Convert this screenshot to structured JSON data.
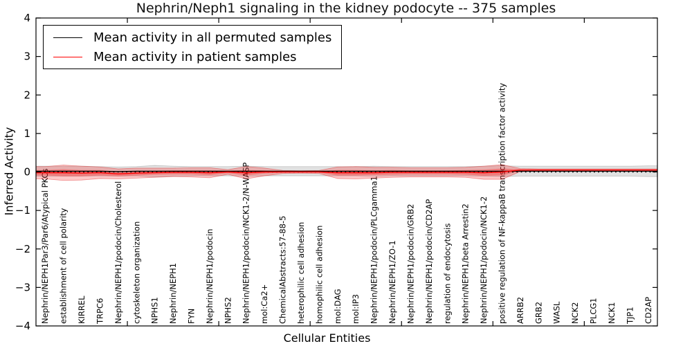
{
  "title": "Nephrin/Neph1 signaling in the kidney podocyte -- 375 samples",
  "legend": {
    "items": [
      {
        "label": "Mean activity in all permuted samples",
        "color": "#000000"
      },
      {
        "label": "Mean activity in patient samples",
        "color": "#ff0000"
      }
    ]
  },
  "axes": {
    "ylabel": "Inferred Activity",
    "xlabel": "Cellular Entities"
  },
  "chart_data": {
    "type": "line",
    "title": "Nephrin/Neph1 signaling in the kidney podocyte -- 375 samples",
    "xlabel": "Cellular Entities",
    "ylabel": "Inferred Activity",
    "ylim": [
      -4,
      4
    ],
    "yticks": [
      -4,
      -3,
      -2,
      -1,
      0,
      1,
      2,
      3,
      4
    ],
    "xtick_positions": [
      5,
      10,
      15,
      20,
      25,
      30
    ],
    "grid": false,
    "legend_position": "upper left",
    "categories": [
      "Nephrin/NEPH1Par3/Par6/Atypical PKCs",
      "establishment of cell polarity",
      "KIRREL",
      "TRPC6",
      "Nephrin/NEPH1/podocin/Cholesterol",
      "cytoskeleton organization",
      "NPHS1",
      "Nephrin/NEPH1",
      "FYN",
      "Nephrin/NEPH1/podocin",
      "NPHS2",
      "Nephrin/NEPH1/podocin/NCK1-2/N-WASP",
      "mol:Ca2+",
      "ChemicalAbstracts:57-88-5",
      "heterophilic cell adhesion",
      "homophilic cell adhesion",
      "mol:DAG",
      "mol:IP3",
      "Nephrin/NEPH1/podocin/PLCgamma1",
      "Nephrin/NEPH1/ZO-1",
      "Nephrin/NEPH1/podocin/GRB2",
      "Nephrin/NEPH1/podocin/CD2AP",
      "regulation of endocytosis",
      "Nephrin/NEPH1/beta Arrestin2",
      "Nephrin/NEPH1/podocin/NCK1-2",
      "positive regulation of NF-kappaB transcription factor activity",
      "ARRB2",
      "GRB2",
      "WASL",
      "NCK2",
      "PLCG1",
      "NCK1",
      "TJP1",
      "CD2AP"
    ],
    "series": [
      {
        "name": "Mean activity in all permuted samples",
        "color": "#000000",
        "values": [
          0.02,
          0.02,
          0.02,
          0.02,
          0.01,
          0.02,
          0.02,
          0.02,
          0.02,
          0.02,
          0.02,
          0.02,
          0.02,
          0.02,
          0.02,
          0.02,
          0.02,
          0.02,
          0.02,
          0.02,
          0.02,
          0.02,
          0.02,
          0.02,
          0.02,
          0.02,
          0.02,
          0.02,
          0.02,
          0.02,
          0.02,
          0.02,
          0.02,
          0.02
        ]
      },
      {
        "name": "Mean activity in patient samples",
        "color": "#ff0000",
        "values": [
          -0.02,
          -0.02,
          -0.03,
          -0.02,
          -0.05,
          -0.03,
          -0.02,
          -0.01,
          -0.01,
          -0.02,
          0.0,
          -0.02,
          0.0,
          0.0,
          0.0,
          0.0,
          -0.02,
          -0.02,
          -0.02,
          -0.01,
          -0.01,
          -0.01,
          -0.01,
          -0.01,
          -0.02,
          0.0,
          0.05,
          0.05,
          0.05,
          0.05,
          0.05,
          0.05,
          0.05,
          0.05
        ]
      }
    ],
    "bands": [
      {
        "name": "permuted-spread",
        "center_series": 0,
        "fill": "rgba(120,120,120,0.22)",
        "edge": "rgba(120,120,120,0.38)",
        "half_widths": [
          0.13,
          0.13,
          0.13,
          0.12,
          0.12,
          0.12,
          0.15,
          0.13,
          0.12,
          0.12,
          0.12,
          0.13,
          0.12,
          0.12,
          0.12,
          0.12,
          0.12,
          0.12,
          0.13,
          0.12,
          0.12,
          0.12,
          0.12,
          0.12,
          0.13,
          0.14,
          0.13,
          0.13,
          0.13,
          0.13,
          0.13,
          0.13,
          0.13,
          0.14
        ]
      },
      {
        "name": "patient-spread-outer",
        "center_series": 1,
        "fill": "rgba(255,0,0,0.22)",
        "edge": "rgba(220,30,30,0.45)",
        "half_widths": [
          0.16,
          0.2,
          0.18,
          0.15,
          0.13,
          0.13,
          0.12,
          0.11,
          0.12,
          0.13,
          0.06,
          0.16,
          0.1,
          0.04,
          0.03,
          0.04,
          0.15,
          0.16,
          0.14,
          0.13,
          0.12,
          0.12,
          0.12,
          0.13,
          0.17,
          0.19,
          0.04,
          0.03,
          0.03,
          0.03,
          0.03,
          0.03,
          0.03,
          0.03
        ]
      },
      {
        "name": "patient-spread-inner",
        "center_series": 1,
        "fill": "rgba(255,0,0,0.28)",
        "edge": "none",
        "half_widths": [
          0.07,
          0.09,
          0.08,
          0.07,
          0.06,
          0.06,
          0.05,
          0.05,
          0.05,
          0.06,
          0.03,
          0.07,
          0.04,
          0.02,
          0.015,
          0.02,
          0.07,
          0.07,
          0.06,
          0.06,
          0.05,
          0.05,
          0.05,
          0.06,
          0.08,
          0.09,
          0.02,
          0.015,
          0.015,
          0.015,
          0.015,
          0.015,
          0.015,
          0.015
        ]
      }
    ],
    "zero_line": {
      "y": 0,
      "style": "dotted",
      "color": "#000000"
    }
  }
}
